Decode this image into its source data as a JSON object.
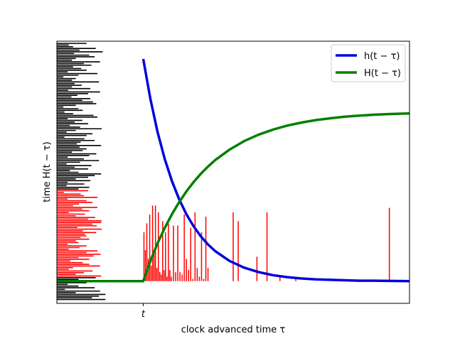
{
  "chart_data": {
    "type": "line",
    "title": "",
    "xlabel": "clock advanced time τ",
    "ylabel": "time H(t − τ)",
    "xlim": [
      -1.2,
      3.7
    ],
    "ylim": [
      -0.1,
      1.08
    ],
    "x_ticks": [
      {
        "value": 0,
        "label": "t"
      }
    ],
    "y_ticks": [],
    "grid": false,
    "legend": "top-right",
    "colors": {
      "h": "#0000dd",
      "H": "#008000",
      "bars": "#ff0000",
      "left_bars_pos": "#000000",
      "left_bars_neg": "#ff0000"
    },
    "series": [
      {
        "name": "h(t − τ)",
        "color": "#0000dd",
        "x": [
          0,
          0.1,
          0.2,
          0.3,
          0.4,
          0.5,
          0.6,
          0.7,
          0.8,
          0.9,
          1.0,
          1.2,
          1.4,
          1.6,
          1.8,
          2.0,
          2.2,
          2.4,
          2.6,
          2.8,
          3.0,
          3.2,
          3.4,
          3.7
        ],
        "values": [
          1.0,
          0.819,
          0.67,
          0.549,
          0.449,
          0.368,
          0.301,
          0.247,
          0.202,
          0.165,
          0.135,
          0.091,
          0.061,
          0.041,
          0.027,
          0.018,
          0.012,
          0.008,
          0.006,
          0.004,
          0.002,
          0.002,
          0.001,
          0.0
        ]
      },
      {
        "name": "H(t − τ)",
        "color": "#008000",
        "x": [
          -1.2,
          -0.5,
          0,
          0.1,
          0.2,
          0.3,
          0.4,
          0.5,
          0.6,
          0.7,
          0.8,
          0.9,
          1.0,
          1.2,
          1.4,
          1.6,
          1.8,
          2.0,
          2.2,
          2.4,
          2.6,
          2.8,
          3.0,
          3.2,
          3.4,
          3.7
        ],
        "values": [
          0,
          0,
          0,
          0.091,
          0.171,
          0.24,
          0.302,
          0.356,
          0.404,
          0.446,
          0.483,
          0.516,
          0.545,
          0.592,
          0.63,
          0.659,
          0.682,
          0.7,
          0.714,
          0.725,
          0.733,
          0.74,
          0.745,
          0.749,
          0.752,
          0.755
        ]
      }
    ],
    "spikes": {
      "color": "#ff0000",
      "x": [
        0.01,
        0.03,
        0.05,
        0.07,
        0.09,
        0.11,
        0.13,
        0.15,
        0.17,
        0.19,
        0.21,
        0.23,
        0.25,
        0.27,
        0.29,
        0.31,
        0.33,
        0.35,
        0.37,
        0.39,
        0.42,
        0.45,
        0.48,
        0.51,
        0.54,
        0.57,
        0.6,
        0.63,
        0.66,
        0.69,
        0.72,
        0.75,
        0.78,
        0.81,
        0.84,
        0.87,
        0.9,
        1.25,
        1.32,
        1.58,
        1.72,
        1.9,
        2.12,
        3.42
      ],
      "values": [
        0.22,
        0.14,
        0.26,
        0.1,
        0.3,
        0.07,
        0.34,
        0.12,
        0.34,
        0.06,
        0.31,
        0.04,
        0.03,
        0.27,
        0.05,
        0.22,
        0.02,
        0.26,
        0.05,
        0.02,
        0.25,
        0.04,
        0.25,
        0.04,
        0.03,
        0.3,
        0.1,
        0.05,
        0.24,
        0.01,
        0.31,
        0.06,
        0.02,
        0.22,
        0.01,
        0.29,
        0.06,
        0.31,
        0.27,
        0.11,
        0.31,
        0.02,
        0.01,
        0.33
      ]
    },
    "left_bars": {
      "pos_color": "#000000",
      "neg_color": "#ff0000",
      "y_start": 1.07,
      "y_end": -0.09,
      "lengths": [
        0.55,
        0.22,
        0.3,
        0.72,
        0.42,
        0.85,
        0.32,
        0.6,
        0.7,
        0.35,
        0.28,
        0.8,
        0.5,
        0.64,
        0.3,
        0.45,
        0.55,
        0.2,
        0.75,
        0.4,
        0.12,
        0.35,
        0.28,
        0.78,
        0.33,
        0.46,
        0.28,
        0.62,
        0.21,
        0.8,
        0.58,
        0.38,
        0.27,
        0.62,
        0.47,
        0.67,
        0.73,
        0.35,
        0.12,
        0.4,
        0.48,
        0.14,
        0.3,
        0.68,
        0.75,
        0.2,
        0.47,
        0.33,
        0.58,
        0.24,
        0.43,
        0.83,
        0.35,
        0.18,
        0.66,
        0.55,
        0.14,
        0.51,
        0.7,
        0.44,
        0.37,
        0.82,
        0.42,
        0.55,
        0.48,
        0.28,
        0.73,
        0.6,
        0.2,
        0.5,
        0.78,
        0.43,
        0.18,
        0.64,
        0.33,
        0.58,
        0.24,
        0.4,
        0.82,
        0.7,
        0.58,
        0.35,
        0.62,
        0.2,
        0.51,
        0.18,
        0.6,
        0.4,
        0.58,
        0.13,
        0.44,
        0.5,
        0.75,
        0.2,
        0.55,
        0.66,
        0.41,
        0.3,
        0.75,
        0.47,
        0.6,
        0.22,
        0.52,
        0.35,
        0.71,
        0.58,
        0.83,
        0.82,
        0.66,
        0.74,
        0.38,
        0.83,
        0.48,
        0.73,
        0.52,
        0.55,
        0.44,
        0.6,
        0.35,
        0.4,
        0.2,
        0.55,
        0.42,
        0.22,
        0.75,
        0.55,
        0.81,
        0.68,
        0.4,
        0.6,
        0.25,
        0.48,
        0.6,
        0.8,
        0.3,
        0.22,
        0.66,
        0.5,
        0.35,
        0.82,
        0.72,
        0.4,
        0.6,
        0.55,
        0.2,
        0.4,
        0.7,
        0.15,
        0.8,
        0.35,
        0.9,
        0.78,
        0.65,
        0.9
      ],
      "neg_from_index": 88,
      "neg_to_index": 140
    }
  }
}
